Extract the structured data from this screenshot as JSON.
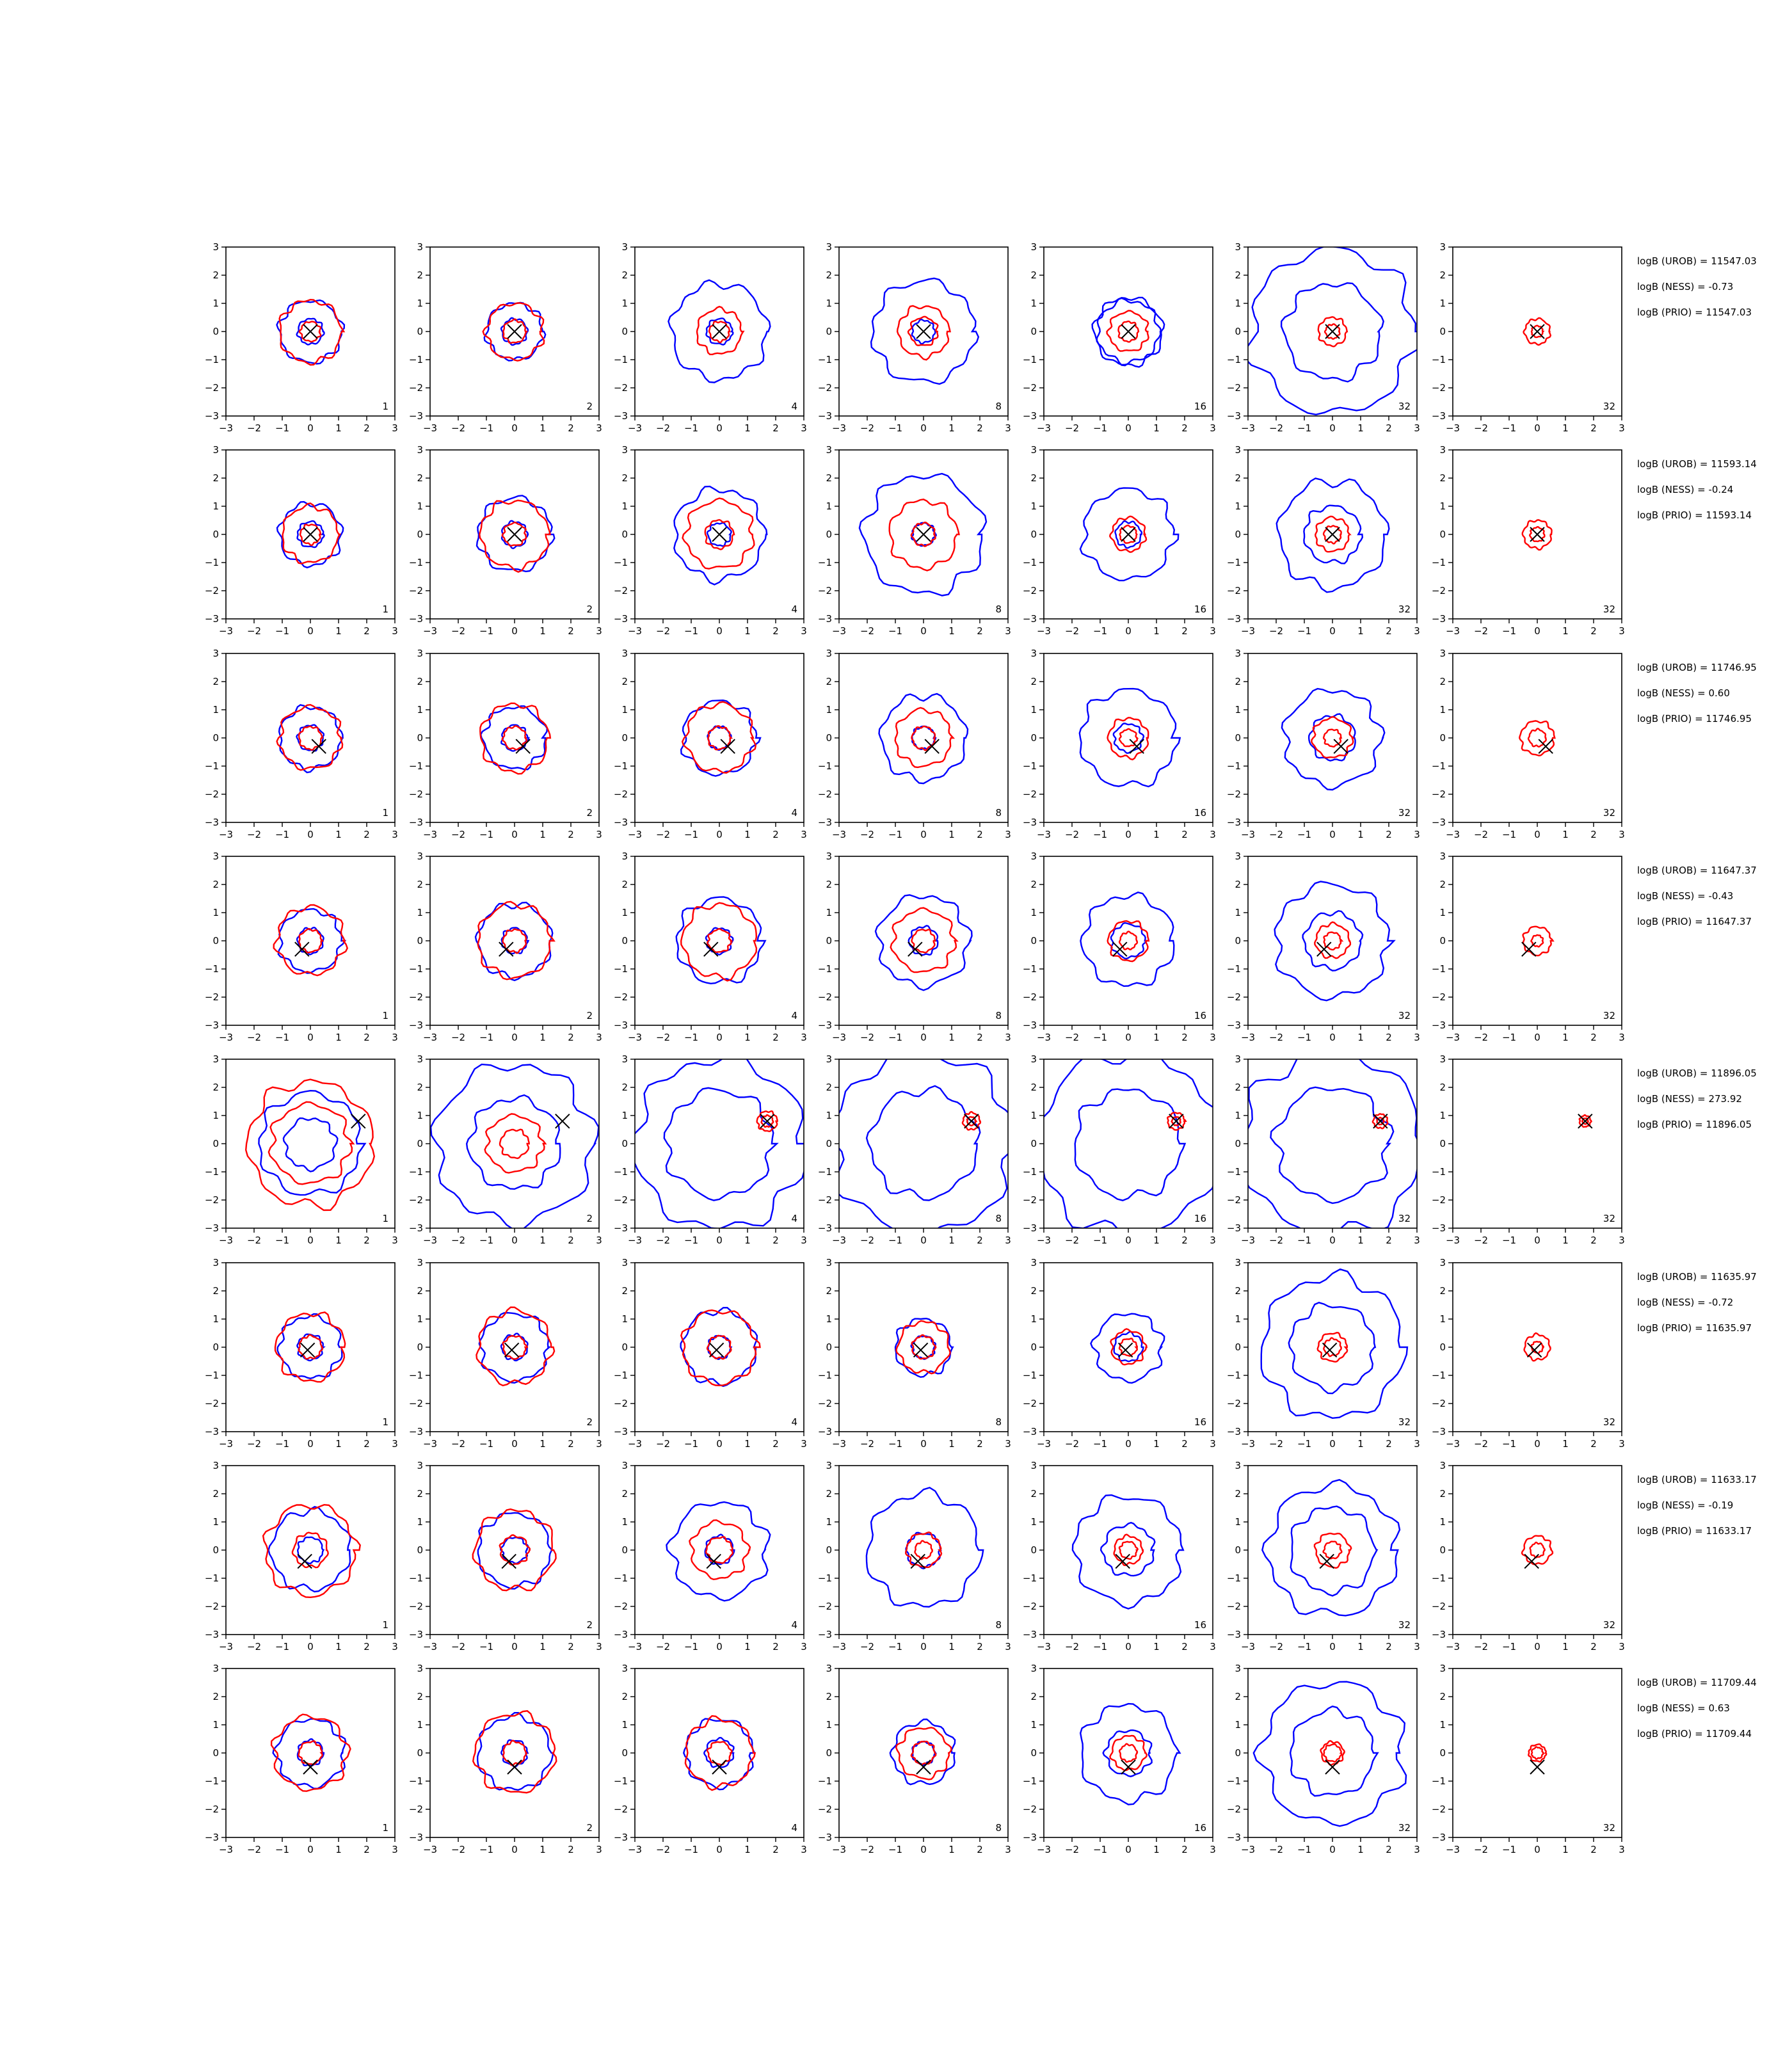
{
  "chart_data": {
    "type": "contour",
    "layout": "8 rows x 7 panels",
    "xlim": [
      -3,
      3
    ],
    "ylim": [
      -3,
      3
    ],
    "ticks": [
      "−3",
      "−2",
      "−1",
      "0",
      "1",
      "2",
      "3"
    ],
    "colors": {
      "reference": "#0000ff",
      "estimate": "#ff0000",
      "marker": "#000000"
    },
    "panel_labels": [
      "1",
      "2",
      "4",
      "8",
      "16",
      "32",
      "32"
    ],
    "rows": [
      {
        "marker": [
          0.0,
          0.0
        ],
        "uRob": "logB (UROB) = 11547.03",
        "ness": "logB (NESS) = -0.73",
        "prio": "logB (PRIO) = 11547.03",
        "blue": [
          [
            1.1,
            1.0,
            1.7,
            1.8,
            1.1,
            1.7,
            0
          ],
          [
            0.45,
            0.45,
            0.45,
            0.4,
            1.2,
            2.9,
            0
          ]
        ],
        "red": [
          [
            1.1,
            1.0,
            0.8,
            0.9,
            0.7,
            0.5,
            0.45
          ],
          [
            0.35,
            0.4,
            0.35,
            0.5,
            0.35,
            0.25,
            0.2
          ]
        ]
      },
      {
        "marker": [
          0.0,
          0.0
        ],
        "uRob": "logB (UROB) = 11593.14",
        "ness": "logB (NESS) = -0.24",
        "prio": "logB (PRIO) = 11593.14",
        "blue": [
          [
            1.1,
            1.3,
            1.6,
            2.1,
            1.6,
            1.9,
            0
          ],
          [
            0.45,
            0.45,
            0.4,
            0.4,
            0.45,
            1.0,
            0
          ]
        ],
        "red": [
          [
            1.0,
            1.2,
            1.2,
            1.2,
            0.6,
            0.6,
            0.5
          ],
          [
            0.35,
            0.4,
            0.5,
            0.4,
            0.3,
            0.3,
            0.25
          ]
        ]
      },
      {
        "marker": [
          0.3,
          -0.3
        ],
        "uRob": "logB (UROB) = 11746.95",
        "ness": "logB (NESS) = 0.60",
        "prio": "logB (PRIO) = 11746.95",
        "blue": [
          [
            1.1,
            1.1,
            1.3,
            1.5,
            1.7,
            1.7,
            0
          ],
          [
            0.45,
            0.45,
            0.4,
            0.4,
            0.5,
            0.8,
            0
          ]
        ],
        "red": [
          [
            1.1,
            1.2,
            1.2,
            1.0,
            0.7,
            0.7,
            0.6
          ],
          [
            0.4,
            0.4,
            0.4,
            0.4,
            0.3,
            0.3,
            0.3
          ]
        ]
      },
      {
        "marker": [
          -0.3,
          -0.3
        ],
        "uRob": "logB (UROB) = 11647.37",
        "ness": "logB (NESS) = -0.43",
        "prio": "logB (PRIO) = 11647.37",
        "blue": [
          [
            1.1,
            1.3,
            1.5,
            1.6,
            1.6,
            2.0,
            0
          ],
          [
            0.45,
            0.45,
            0.45,
            0.5,
            0.6,
            1.0,
            0
          ]
        ],
        "red": [
          [
            1.2,
            1.3,
            1.3,
            1.1,
            0.7,
            0.6,
            0.5
          ],
          [
            0.4,
            0.4,
            0.4,
            0.4,
            0.3,
            0.3,
            0.2
          ]
        ]
      },
      {
        "marker": [
          1.7,
          0.8
        ],
        "uRob": "logB (UROB) = 11896.05",
        "ness": "logB (NESS) = 273.92",
        "prio": "logB (PRIO) = 11896.05",
        "blue": [
          [
            1.8,
            2.8,
            3.0,
            3.2,
            3.2,
            3.2,
            0
          ],
          [
            0.9,
            1.6,
            1.9,
            1.9,
            1.9,
            2.0,
            0
          ]
        ],
        "red": [
          [
            2.2,
            1.0,
            0.35,
            0.3,
            0.3,
            0.25,
            0.2
          ],
          [
            1.4,
            0.5,
            0.2,
            0.15,
            0.15,
            0.12,
            0.1
          ]
        ]
      },
      {
        "marker": [
          -0.1,
          -0.1
        ],
        "uRob": "logB (UROB) = 11635.97",
        "ness": "logB (NESS) = -0.72",
        "prio": "logB (PRIO) = 11635.97",
        "blue": [
          [
            1.1,
            1.2,
            1.3,
            1.0,
            1.2,
            2.5,
            0
          ],
          [
            0.45,
            0.45,
            0.4,
            0.4,
            0.5,
            1.5,
            0
          ]
        ],
        "red": [
          [
            1.2,
            1.3,
            1.3,
            0.9,
            0.6,
            0.5,
            0.45
          ],
          [
            0.4,
            0.4,
            0.4,
            0.4,
            0.3,
            0.3,
            0.2
          ]
        ]
      },
      {
        "marker": [
          -0.2,
          -0.4
        ],
        "uRob": "logB (UROB) = 11633.17",
        "ness": "logB (NESS) = -0.19",
        "prio": "logB (PRIO) = 11633.17",
        "blue": [
          [
            1.4,
            1.3,
            1.7,
            2.0,
            1.9,
            2.3,
            0
          ],
          [
            0.45,
            0.45,
            0.5,
            0.6,
            0.9,
            1.5,
            0
          ]
        ],
        "red": [
          [
            1.6,
            1.4,
            1.0,
            0.6,
            0.5,
            0.6,
            0.5
          ],
          [
            0.6,
            0.5,
            0.45,
            0.3,
            0.3,
            0.3,
            0.25
          ]
        ]
      },
      {
        "marker": [
          0.0,
          -0.5
        ],
        "uRob": "logB (UROB) = 11709.44",
        "ness": "logB (NESS) = 0.63",
        "prio": "logB (PRIO) = 11709.44",
        "blue": [
          [
            1.2,
            1.3,
            1.2,
            1.1,
            1.7,
            2.5,
            0
          ],
          [
            0.45,
            0.45,
            0.5,
            0.4,
            0.8,
            1.5,
            0
          ]
        ],
        "red": [
          [
            1.3,
            1.4,
            1.2,
            0.9,
            0.6,
            0.4,
            0.3
          ],
          [
            0.4,
            0.4,
            0.4,
            0.4,
            0.3,
            0.3,
            0.2
          ]
        ]
      }
    ]
  }
}
